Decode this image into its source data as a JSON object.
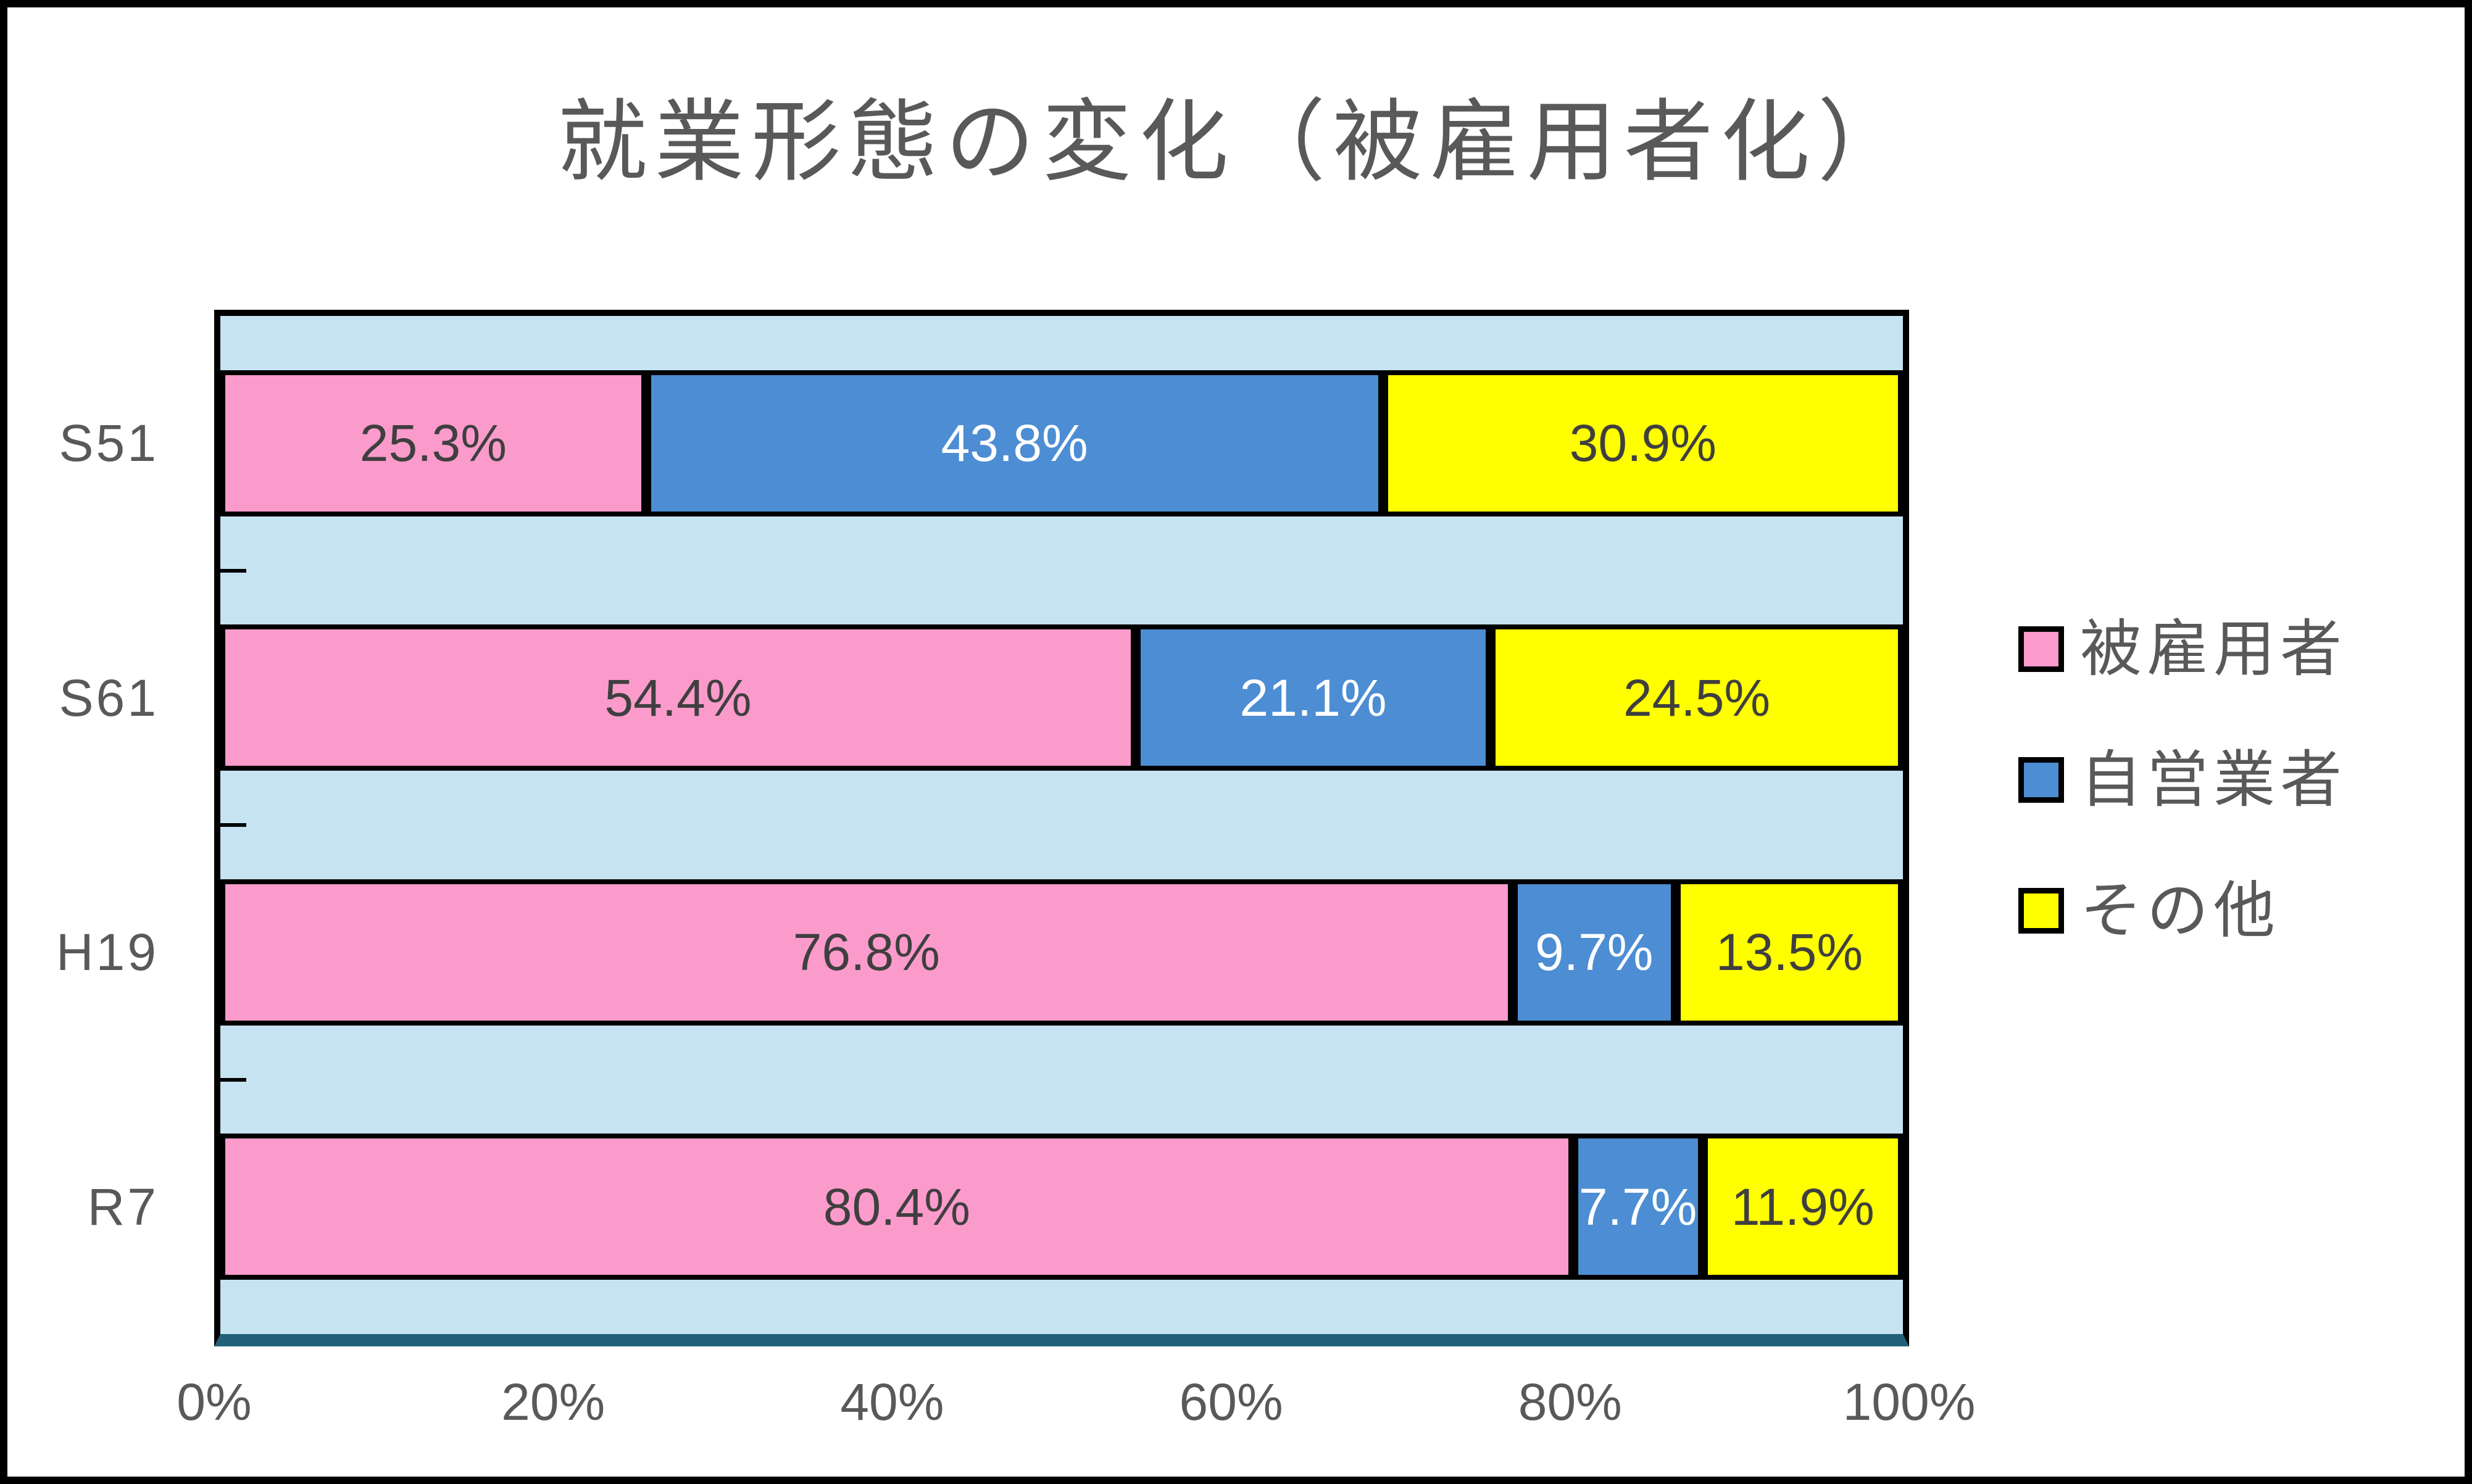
{
  "title": "就業形態の変化（被雇用者化）",
  "chart_data": {
    "type": "bar",
    "orientation": "horizontal-stacked",
    "title": "就業形態の変化（被雇用者化）",
    "categories": [
      "S51",
      "S61",
      "H19",
      "R7"
    ],
    "series": [
      {
        "name": "被雇用者",
        "color": "#FB9BCB",
        "label_color": "#3F3F3F",
        "values": [
          25.3,
          54.4,
          76.8,
          80.4
        ],
        "labels": [
          "25.3%",
          "54.4%",
          "76.8%",
          "80.4%"
        ]
      },
      {
        "name": "自営業者",
        "color": "#4C8DD3",
        "label_color": "#FFFFFF",
        "values": [
          43.8,
          21.1,
          9.7,
          7.7
        ],
        "labels": [
          "43.8%",
          "21.1%",
          "9.7%",
          "7.7%"
        ]
      },
      {
        "name": "その他",
        "color": "#FFFF00",
        "label_color": "#3F3F3F",
        "values": [
          30.9,
          24.5,
          13.5,
          11.9
        ],
        "labels": [
          "30.9%",
          "24.5%",
          "13.5%",
          "11.9%"
        ]
      }
    ],
    "x_ticks": [
      "0%",
      "20%",
      "40%",
      "60%",
      "80%",
      "100%"
    ],
    "xlim": [
      0,
      100
    ],
    "grid": false,
    "legend_position": "right",
    "plot_background": "#C6E3F2",
    "axis_line_color": "#206078",
    "bar_border_color": "#000000",
    "text_color": "#595959"
  },
  "legend": {
    "items": [
      {
        "label": "被雇用者",
        "color": "#FB9BCB"
      },
      {
        "label": "自営業者",
        "color": "#4C8DD3"
      },
      {
        "label": "その他",
        "color": "#FFFF00"
      }
    ]
  }
}
